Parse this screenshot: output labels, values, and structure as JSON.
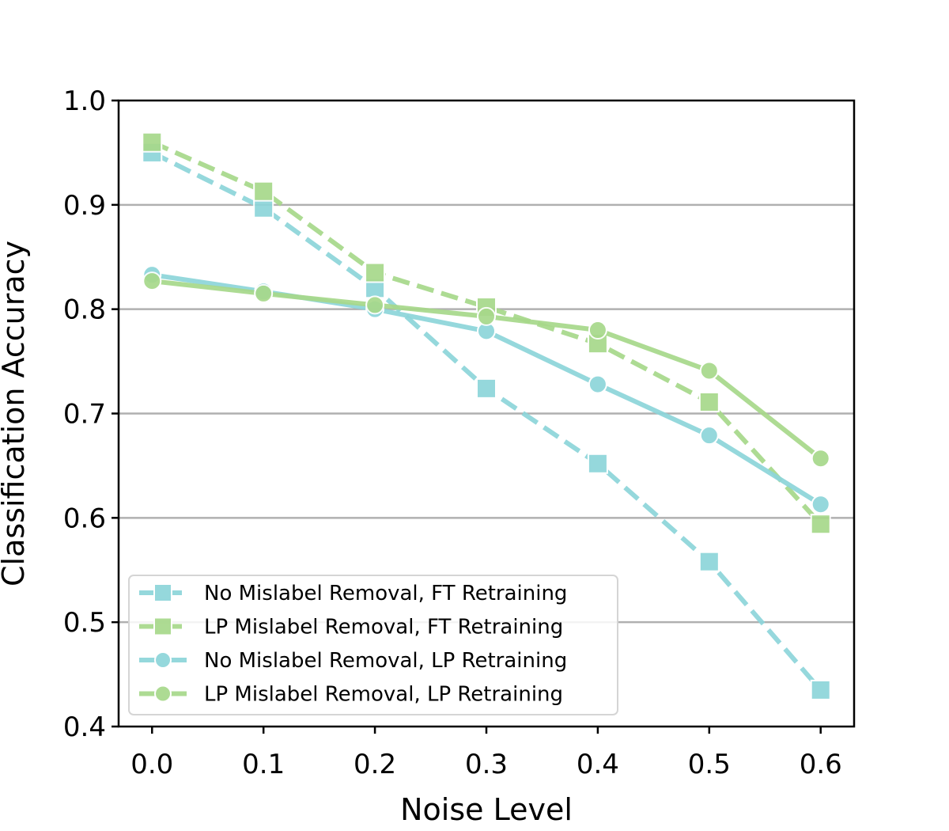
{
  "chart_data": {
    "type": "line",
    "xlabel": "Noise Level",
    "ylabel": "Classification Accuracy",
    "x": [
      0.0,
      0.1,
      0.2,
      0.3,
      0.4,
      0.5,
      0.6
    ],
    "x_tick_labels": [
      "0.0",
      "0.1",
      "0.2",
      "0.3",
      "0.4",
      "0.5",
      "0.6"
    ],
    "y_tick_values": [
      0.4,
      0.5,
      0.6,
      0.7,
      0.8,
      0.9,
      1.0
    ],
    "y_tick_labels": [
      "0.4",
      "0.5",
      "0.6",
      "0.7",
      "0.8",
      "0.9",
      "1.0"
    ],
    "xlim": [
      -0.03,
      0.63
    ],
    "ylim": [
      0.4,
      1.0
    ],
    "grid": "horizontal",
    "legend_position": "lower-left",
    "series": [
      {
        "name": "No Mislabel Removal, FT Retraining",
        "color": "#8dd5da",
        "line_style": "dashed",
        "marker": "square",
        "values": [
          0.95,
          0.897,
          0.82,
          0.724,
          0.652,
          0.558,
          0.435
        ]
      },
      {
        "name": "LP Mislabel Removal, FT Retraining",
        "color": "#a7d88a",
        "line_style": "dashed",
        "marker": "square",
        "values": [
          0.96,
          0.913,
          0.835,
          0.802,
          0.767,
          0.711,
          0.594
        ]
      },
      {
        "name": "No Mislabel Removal, LP Retraining",
        "color": "#8dd5da",
        "line_style": "solid",
        "marker": "circle",
        "values": [
          0.833,
          0.817,
          0.8,
          0.779,
          0.728,
          0.679,
          0.613
        ]
      },
      {
        "name": "LP Mislabel Removal, LP Retraining",
        "color": "#a7d88a",
        "line_style": "solid",
        "marker": "circle",
        "values": [
          0.827,
          0.815,
          0.804,
          0.793,
          0.78,
          0.741,
          0.657
        ]
      }
    ]
  }
}
